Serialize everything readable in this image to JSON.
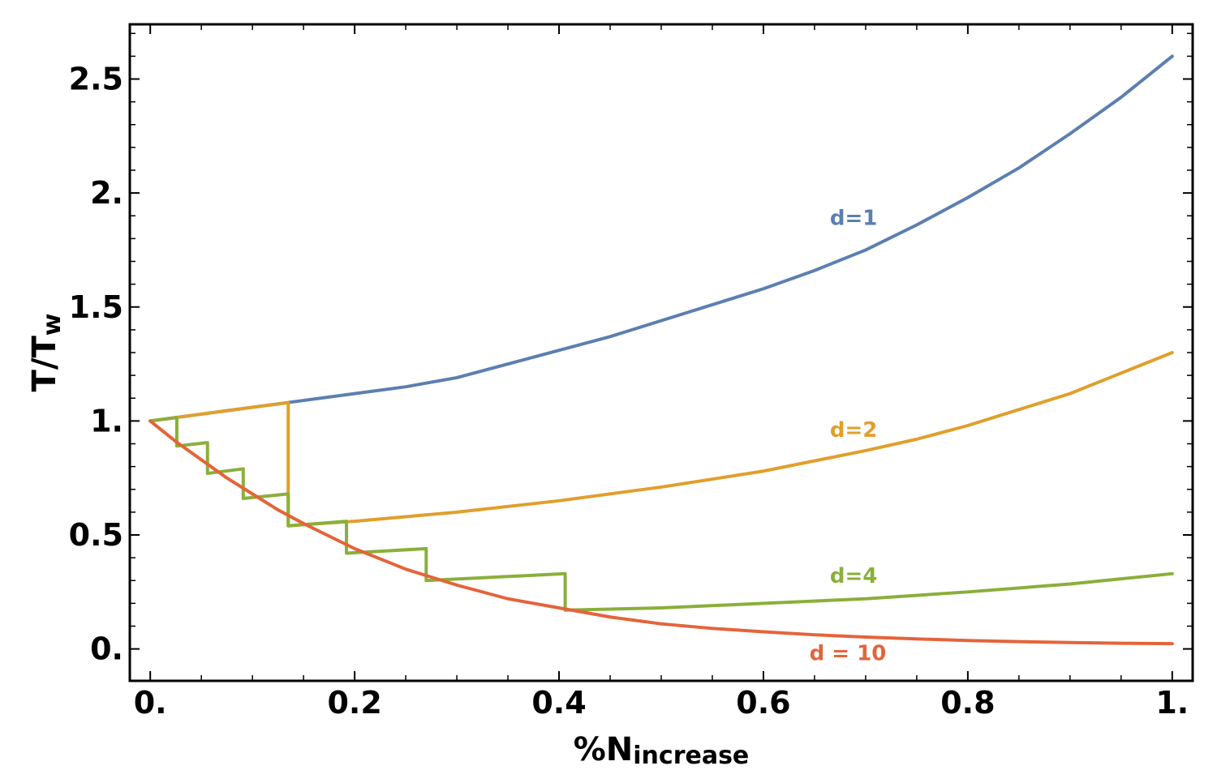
{
  "chart_data": {
    "type": "line",
    "xlabel": {
      "main": "%N",
      "sub": "increase"
    },
    "ylabel": {
      "main": "T/T",
      "sub": "w"
    },
    "xlim": [
      -0.02,
      1.02
    ],
    "ylim": [
      -0.14,
      2.74
    ],
    "x_ticks": [
      {
        "value": 0,
        "label": "0."
      },
      {
        "value": 0.2,
        "label": "0.2"
      },
      {
        "value": 0.4,
        "label": "0.4"
      },
      {
        "value": 0.6,
        "label": "0.6"
      },
      {
        "value": 0.8,
        "label": "0.8"
      },
      {
        "value": 1,
        "label": "1."
      }
    ],
    "y_ticks": [
      {
        "value": 0,
        "label": "0."
      },
      {
        "value": 0.5,
        "label": "0.5"
      },
      {
        "value": 1,
        "label": "1."
      },
      {
        "value": 1.5,
        "label": "1.5"
      },
      {
        "value": 2,
        "label": "2."
      },
      {
        "value": 2.5,
        "label": "2.5"
      }
    ],
    "grid": false,
    "series": [
      {
        "label": "d=1",
        "color": "#5b7fb0",
        "label_at": [
          0.665,
          1.86
        ],
        "x": [
          0,
          0.05,
          0.1,
          0.15,
          0.2,
          0.25,
          0.3,
          0.35,
          0.4,
          0.45,
          0.5,
          0.55,
          0.6,
          0.65,
          0.7,
          0.75,
          0.8,
          0.85,
          0.9,
          0.95,
          1.0
        ],
        "y": [
          1.0,
          1.03,
          1.06,
          1.09,
          1.12,
          1.15,
          1.19,
          1.25,
          1.31,
          1.37,
          1.44,
          1.51,
          1.58,
          1.66,
          1.75,
          1.86,
          1.98,
          2.11,
          2.26,
          2.42,
          2.6
        ]
      },
      {
        "label": "d=2",
        "color": "#e09f2c",
        "label_at": [
          0.665,
          0.93
        ],
        "x": [
          0,
          0.05,
          0.1,
          0.135,
          0.135,
          0.15,
          0.2,
          0.3,
          0.4,
          0.5,
          0.6,
          0.7,
          0.75,
          0.8,
          0.85,
          0.9,
          0.95,
          1.0
        ],
        "y": [
          1.0,
          1.03,
          1.06,
          1.08,
          0.54,
          0.545,
          0.56,
          0.6,
          0.65,
          0.71,
          0.78,
          0.87,
          0.92,
          0.98,
          1.05,
          1.12,
          1.21,
          1.3
        ]
      },
      {
        "label": "d=4",
        "color": "#8aaf3a",
        "label_at": [
          0.665,
          0.29
        ],
        "x": [
          0,
          0.026,
          0.026,
          0.056,
          0.056,
          0.091,
          0.091,
          0.135,
          0.135,
          0.192,
          0.192,
          0.27,
          0.27,
          0.406,
          0.406,
          0.5,
          0.6,
          0.7,
          0.8,
          0.9,
          1.0
        ],
        "y": [
          1.0,
          1.015,
          0.89,
          0.905,
          0.77,
          0.79,
          0.66,
          0.68,
          0.54,
          0.56,
          0.42,
          0.44,
          0.3,
          0.33,
          0.17,
          0.18,
          0.2,
          0.22,
          0.25,
          0.285,
          0.33
        ]
      },
      {
        "label": "d = 10",
        "color": "#e4643a",
        "label_at": [
          0.645,
          -0.05
        ],
        "x": [
          0,
          0.025,
          0.05,
          0.075,
          0.1,
          0.125,
          0.15,
          0.2,
          0.25,
          0.3,
          0.35,
          0.4,
          0.45,
          0.5,
          0.55,
          0.6,
          0.65,
          0.7,
          0.75,
          0.8,
          0.85,
          0.9,
          0.95,
          1.0
        ],
        "y": [
          1.0,
          0.91,
          0.83,
          0.75,
          0.68,
          0.61,
          0.55,
          0.44,
          0.35,
          0.28,
          0.22,
          0.18,
          0.14,
          0.11,
          0.09,
          0.075,
          0.062,
          0.052,
          0.044,
          0.037,
          0.032,
          0.028,
          0.025,
          0.023
        ]
      }
    ]
  }
}
